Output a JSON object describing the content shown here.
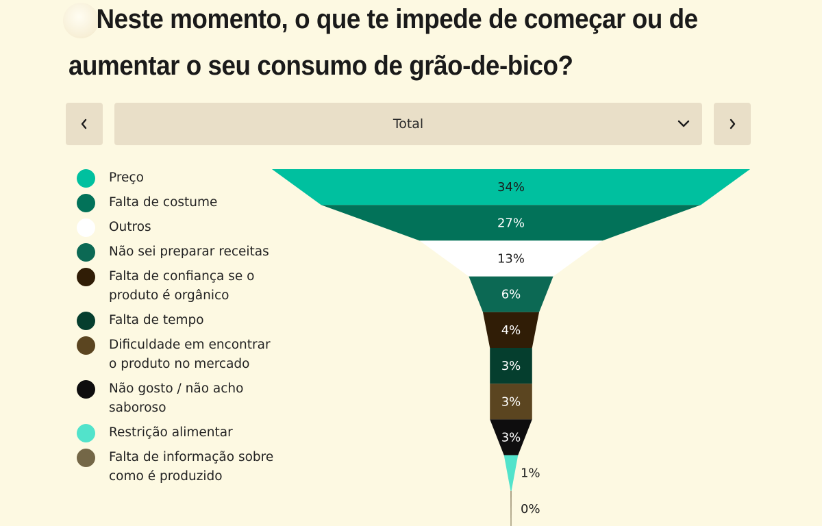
{
  "title": {
    "line1": "Neste momento, o que te impede de começar ou de",
    "line2": "aumentar o seu consumo de grão-de-bico?"
  },
  "selector": {
    "value": "Total",
    "prev_icon": "chevron-left-icon",
    "next_icon": "chevron-right-icon",
    "dropdown_icon": "chevron-down-icon"
  },
  "chart_data": {
    "type": "funnel",
    "categories": [
      "Preço",
      "Falta de costume",
      "Outros",
      "Não sei preparar receitas",
      "Falta de confiança se o produto é orgânico",
      "Falta de tempo",
      "Dificuldade em encontrar o produto no mercado",
      "Não gosto / não acho saboroso",
      "Restrição alimentar",
      "Falta de informação sobre como é produzido"
    ],
    "values": [
      34,
      27,
      13,
      6,
      4,
      3,
      3,
      3,
      1,
      0
    ],
    "labels": [
      "34%",
      "27%",
      "13%",
      "6%",
      "4%",
      "3%",
      "3%",
      "3%",
      "1%",
      "0%"
    ],
    "colors": [
      "#00c09f",
      "#027259",
      "#ffffff",
      "#0c6954",
      "#301d06",
      "#053e2e",
      "#5b4520",
      "#0e0d0e",
      "#52e3cb",
      "#746747"
    ],
    "label_colors": [
      "#1c1c1c",
      "#ffffff",
      "#1c1c1c",
      "#ffffff",
      "#ffffff",
      "#ffffff",
      "#ffffff",
      "#ffffff",
      "#1c1c1c",
      "#1c1c1c"
    ],
    "legend_position": "left"
  }
}
